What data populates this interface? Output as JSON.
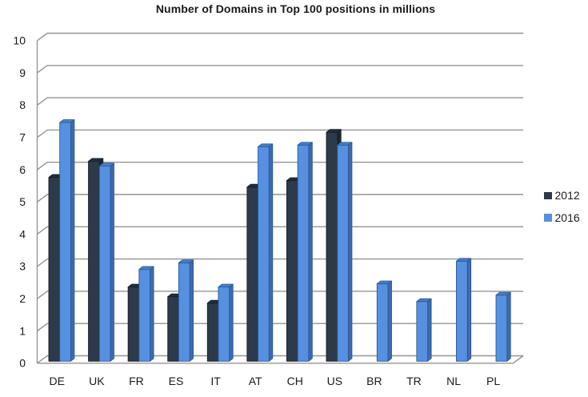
{
  "title": "Number of Domains in Top 100 positions in millions",
  "legend": {
    "position": "right",
    "items": [
      {
        "label": "2012",
        "color": "#2c3a49"
      },
      {
        "label": "2016",
        "color": "#5591e0"
      }
    ]
  },
  "chart_data": {
    "type": "bar",
    "style": "3d-clustered-column",
    "title": "Number of Domains in Top 100 positions in millions",
    "categories": [
      "DE",
      "UK",
      "FR",
      "ES",
      "IT",
      "AT",
      "CH",
      "US",
      "BR",
      "TR",
      "NL",
      "PL"
    ],
    "series": [
      {
        "name": "2012",
        "color": "#2c3a49",
        "color_top": "#232e3b",
        "color_side": "#1e2833",
        "color_edge": "#161f28",
        "values": [
          5.7,
          6.2,
          2.3,
          2.0,
          1.8,
          5.4,
          5.6,
          7.1,
          0,
          0,
          0,
          0
        ]
      },
      {
        "name": "2016",
        "color": "#5591e0",
        "color_top": "#4a80c4",
        "color_side": "#3d6bad",
        "color_edge": "#2d5994",
        "values": [
          7.4,
          6.05,
          2.85,
          3.05,
          2.3,
          6.65,
          6.7,
          6.7,
          2.4,
          1.85,
          3.1,
          2.05
        ]
      }
    ],
    "xlabel": "",
    "ylabel": "",
    "ylim": [
      0,
      10
    ],
    "yticks": [
      0,
      1,
      2,
      3,
      4,
      5,
      6,
      7,
      8,
      9,
      10
    ],
    "grid": true,
    "legend_position": "right",
    "gridline_color": "#949494",
    "text_color": "#1a1a1a",
    "background": "#ffffff"
  }
}
